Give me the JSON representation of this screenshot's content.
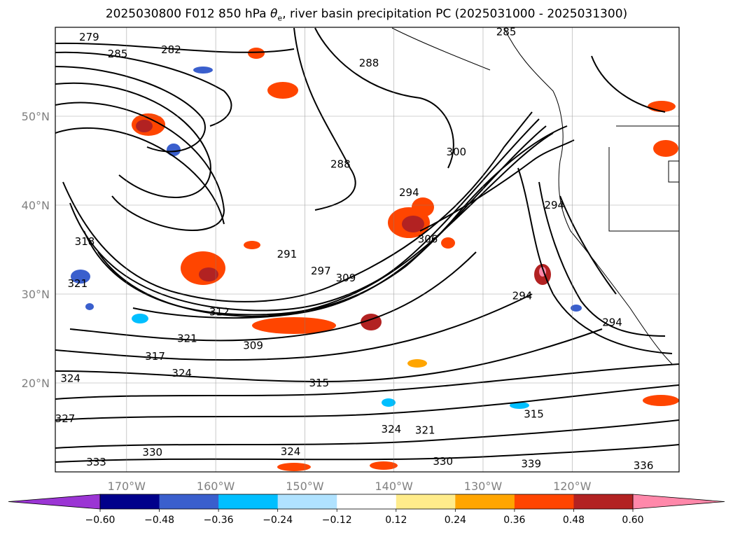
{
  "chart_data": {
    "type": "contour",
    "title": "2025030800 F012 850 hPa θe, river basin precipitation PC (2025031000 - 2025031300)",
    "title_parts": {
      "prefix": "2025030800 F012 850 hPa ",
      "theta": "θ",
      "sub": "e",
      "suffix": ", river basin precipitation PC (2025031000 - 2025031300)"
    },
    "x_axis": {
      "ticks": [
        -170,
        -160,
        -150,
        -140,
        -130,
        -120
      ],
      "tick_labels": [
        "170°W",
        "160°W",
        "150°W",
        "140°W",
        "130°W",
        "120°W"
      ],
      "range": [
        -178,
        -108
      ]
    },
    "y_axis": {
      "ticks": [
        20,
        30,
        40,
        50
      ],
      "tick_labels": [
        "20°N",
        "30°N",
        "40°N",
        "50°N"
      ],
      "range": [
        10,
        60
      ]
    },
    "grid": true,
    "colorbar": {
      "orientation": "horizontal",
      "extend": "both",
      "levels": [
        -0.6,
        -0.48,
        -0.36,
        -0.24,
        -0.12,
        0.12,
        0.24,
        0.36,
        0.48,
        0.6
      ],
      "tick_labels": [
        "−0.60",
        "−0.48",
        "−0.36",
        "−0.24",
        "−0.12",
        "0.12",
        "0.24",
        "0.36",
        "0.48",
        "0.60"
      ],
      "colors": [
        "#9b35d4",
        "#00008b",
        "#3a5fcd",
        "#00bfff",
        "#b0e2ff",
        "#ffffff",
        "#ffec8b",
        "#ffa500",
        "#ff4500",
        "#b22222",
        "#ff88aa"
      ]
    },
    "contour_labels": [
      {
        "text": "279",
        "lon": -174.2,
        "lat": 58.9
      },
      {
        "text": "285",
        "lon": -171.0,
        "lat": 57.0
      },
      {
        "text": "282",
        "lon": -165.0,
        "lat": 57.5
      },
      {
        "text": "288",
        "lon": -142.8,
        "lat": 56.0
      },
      {
        "text": "285",
        "lon": -127.4,
        "lat": 59.5
      },
      {
        "text": "288",
        "lon": -146.0,
        "lat": 44.6
      },
      {
        "text": "294",
        "lon": -138.3,
        "lat": 41.4
      },
      {
        "text": "300",
        "lon": -133.0,
        "lat": 46.0
      },
      {
        "text": "291",
        "lon": -152.0,
        "lat": 34.5
      },
      {
        "text": "297",
        "lon": -148.2,
        "lat": 32.6
      },
      {
        "text": "306",
        "lon": -136.2,
        "lat": 36.2
      },
      {
        "text": "309",
        "lon": -145.4,
        "lat": 31.8
      },
      {
        "text": "312",
        "lon": -159.6,
        "lat": 28.0
      },
      {
        "text": "318",
        "lon": -174.7,
        "lat": 35.9
      },
      {
        "text": "321",
        "lon": -175.5,
        "lat": 31.2
      },
      {
        "text": "321",
        "lon": -163.2,
        "lat": 25.0
      },
      {
        "text": "309",
        "lon": -155.8,
        "lat": 24.2
      },
      {
        "text": "317",
        "lon": -166.8,
        "lat": 23.0
      },
      {
        "text": "324",
        "lon": -176.3,
        "lat": 20.5
      },
      {
        "text": "324",
        "lon": -163.8,
        "lat": 21.1
      },
      {
        "text": "315",
        "lon": -148.4,
        "lat": 20.0
      },
      {
        "text": "327",
        "lon": -176.9,
        "lat": 16.0
      },
      {
        "text": "324",
        "lon": -140.3,
        "lat": 14.8
      },
      {
        "text": "321",
        "lon": -136.5,
        "lat": 14.7
      },
      {
        "text": "315",
        "lon": -124.3,
        "lat": 16.5
      },
      {
        "text": "330",
        "lon": -167.1,
        "lat": 12.2
      },
      {
        "text": "333",
        "lon": -173.4,
        "lat": 11.1
      },
      {
        "text": "324",
        "lon": -151.6,
        "lat": 12.3
      },
      {
        "text": "330",
        "lon": -134.5,
        "lat": 11.2
      },
      {
        "text": "339",
        "lon": -124.6,
        "lat": 10.9
      },
      {
        "text": "294",
        "lon": -122.0,
        "lat": 40.0
      },
      {
        "text": "294",
        "lon": -125.6,
        "lat": 29.8
      },
      {
        "text": "294",
        "lon": -115.5,
        "lat": 26.8
      },
      {
        "text": "336",
        "lon": -112.0,
        "lat": 10.7
      }
    ]
  }
}
